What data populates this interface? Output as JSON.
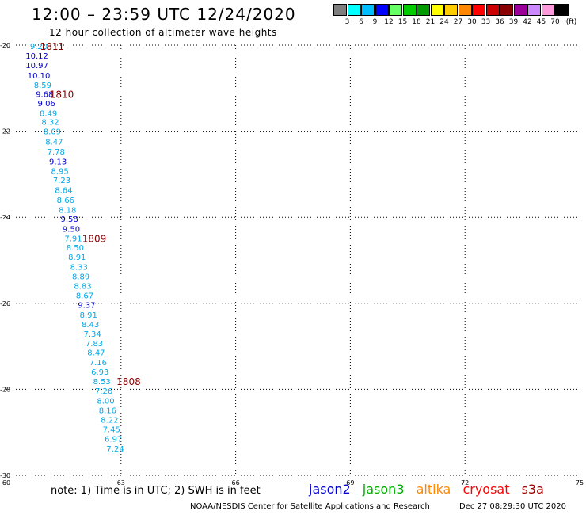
{
  "header": {
    "title": "12:00 – 23:59 UTC 12/24/2020",
    "subtitle": "12 hour collection of altimeter wave heights"
  },
  "color_scale": {
    "unit_label": "(ft)",
    "entries": [
      {
        "label": "3",
        "color": "#7f7f7f"
      },
      {
        "label": "6",
        "color": "#00ffff"
      },
      {
        "label": "9",
        "color": "#00bfff"
      },
      {
        "label": "12",
        "color": "#0000ff"
      },
      {
        "label": "15",
        "color": "#66ff66"
      },
      {
        "label": "18",
        "color": "#00cc00"
      },
      {
        "label": "21",
        "color": "#009900"
      },
      {
        "label": "24",
        "color": "#ffff00"
      },
      {
        "label": "27",
        "color": "#ffcc00"
      },
      {
        "label": "30",
        "color": "#ff8800"
      },
      {
        "label": "33",
        "color": "#ff0000"
      },
      {
        "label": "36",
        "color": "#cc0000"
      },
      {
        "label": "39",
        "color": "#880000"
      },
      {
        "label": "42",
        "color": "#990099"
      },
      {
        "label": "45",
        "color": "#cc88ff"
      },
      {
        "label": "70",
        "color": "#ff99dd"
      },
      {
        "label": "",
        "color": "#000000"
      }
    ]
  },
  "chart_data": {
    "type": "scatter",
    "title": "12:00 – 23:59 UTC 12/24/2020",
    "subtitle": "12 hour collection of altimeter wave heights",
    "xlim": [
      60,
      75
    ],
    "ylim": [
      -30,
      -20
    ],
    "x_ticks": [
      "60",
      "63",
      "66",
      "69",
      "72",
      "75"
    ],
    "y_ticks": [
      "-20",
      "-22",
      "-24",
      "-26",
      "-28",
      "-30"
    ],
    "grid": true,
    "colors": {
      "light": "#00a8e8",
      "dark": "#0000cc",
      "time": "#880000"
    },
    "points": [
      {
        "lon": 60.85,
        "lat": -20.02,
        "label": "9.20",
        "color": "light"
      },
      {
        "lon": 60.8,
        "lat": -20.24,
        "label": "10.12",
        "color": "dark"
      },
      {
        "lon": 60.8,
        "lat": -20.46,
        "label": "10.97",
        "color": "dark"
      },
      {
        "lon": 60.85,
        "lat": -20.7,
        "label": "10.10",
        "color": "dark"
      },
      {
        "lon": 60.95,
        "lat": -20.92,
        "label": "8.59",
        "color": "light"
      },
      {
        "lon": 61.0,
        "lat": -21.13,
        "label": "9.68",
        "color": "dark"
      },
      {
        "lon": 61.05,
        "lat": -21.34,
        "label": "9.06",
        "color": "dark"
      },
      {
        "lon": 61.1,
        "lat": -21.57,
        "label": "8.49",
        "color": "light"
      },
      {
        "lon": 61.15,
        "lat": -21.78,
        "label": "8.32",
        "color": "light"
      },
      {
        "lon": 61.2,
        "lat": -22.0,
        "label": "8.09",
        "color": "light"
      },
      {
        "lon": 61.25,
        "lat": -22.24,
        "label": "8.47",
        "color": "light"
      },
      {
        "lon": 61.3,
        "lat": -22.47,
        "label": "7.78",
        "color": "light"
      },
      {
        "lon": 61.35,
        "lat": -22.7,
        "label": "9.13",
        "color": "dark"
      },
      {
        "lon": 61.4,
        "lat": -22.92,
        "label": "8.95",
        "color": "light"
      },
      {
        "lon": 61.45,
        "lat": -23.13,
        "label": "7.23",
        "color": "light"
      },
      {
        "lon": 61.5,
        "lat": -23.36,
        "label": "8.64",
        "color": "light"
      },
      {
        "lon": 61.55,
        "lat": -23.59,
        "label": "8.66",
        "color": "light"
      },
      {
        "lon": 61.6,
        "lat": -23.82,
        "label": "8.18",
        "color": "light"
      },
      {
        "lon": 61.65,
        "lat": -24.03,
        "label": "9.58",
        "color": "dark"
      },
      {
        "lon": 61.7,
        "lat": -24.26,
        "label": "9.50",
        "color": "dark"
      },
      {
        "lon": 61.75,
        "lat": -24.48,
        "label": "7.91",
        "color": "light"
      },
      {
        "lon": 61.8,
        "lat": -24.7,
        "label": "8.50",
        "color": "light"
      },
      {
        "lon": 61.85,
        "lat": -24.92,
        "label": "8.91",
        "color": "light"
      },
      {
        "lon": 61.9,
        "lat": -25.15,
        "label": "8.33",
        "color": "light"
      },
      {
        "lon": 61.95,
        "lat": -25.37,
        "label": "8.89",
        "color": "light"
      },
      {
        "lon": 62.0,
        "lat": -25.59,
        "label": "8.83",
        "color": "light"
      },
      {
        "lon": 62.05,
        "lat": -25.81,
        "label": "8.67",
        "color": "light"
      },
      {
        "lon": 62.1,
        "lat": -26.03,
        "label": "9.37",
        "color": "dark"
      },
      {
        "lon": 62.15,
        "lat": -26.26,
        "label": "8.91",
        "color": "light"
      },
      {
        "lon": 62.2,
        "lat": -26.48,
        "label": "8.43",
        "color": "light"
      },
      {
        "lon": 62.25,
        "lat": -26.7,
        "label": "7.34",
        "color": "light"
      },
      {
        "lon": 62.3,
        "lat": -26.92,
        "label": "7.83",
        "color": "light"
      },
      {
        "lon": 62.35,
        "lat": -27.14,
        "label": "8.47",
        "color": "light"
      },
      {
        "lon": 62.4,
        "lat": -27.37,
        "label": "7.16",
        "color": "light"
      },
      {
        "lon": 62.45,
        "lat": -27.59,
        "label": "6.93",
        "color": "light"
      },
      {
        "lon": 62.5,
        "lat": -27.81,
        "label": "8.53",
        "color": "light"
      },
      {
        "lon": 62.55,
        "lat": -28.03,
        "label": "7.26",
        "color": "light"
      },
      {
        "lon": 62.6,
        "lat": -28.26,
        "label": "8.00",
        "color": "light"
      },
      {
        "lon": 62.65,
        "lat": -28.48,
        "label": "8.16",
        "color": "light"
      },
      {
        "lon": 62.7,
        "lat": -28.7,
        "label": "8.22",
        "color": "light"
      },
      {
        "lon": 62.75,
        "lat": -28.92,
        "label": "7.45",
        "color": "light"
      },
      {
        "lon": 62.8,
        "lat": -29.14,
        "label": "6.97",
        "color": "light"
      },
      {
        "lon": 62.85,
        "lat": -29.37,
        "label": "7.24",
        "color": "light"
      }
    ],
    "time_labels": [
      {
        "lon": 61.2,
        "lat": -20.02,
        "label": "1811"
      },
      {
        "lon": 61.45,
        "lat": -21.13,
        "label": "1810"
      },
      {
        "lon": 62.3,
        "lat": -24.48,
        "label": "1809"
      },
      {
        "lon": 63.2,
        "lat": -27.81,
        "label": "1808"
      }
    ]
  },
  "footer": {
    "note": "note:  1) Time is in UTC; 2) SWH is in feet",
    "satellites": [
      {
        "name": "jason2",
        "color": "#0000cc"
      },
      {
        "name": "jason3",
        "color": "#00aa00"
      },
      {
        "name": "altika",
        "color": "#ff8800"
      },
      {
        "name": "cryosat",
        "color": "#ff0000"
      },
      {
        "name": "s3a",
        "color": "#990000"
      }
    ],
    "credit": "NOAA/NESDIS Center for Satellite Applications and Research",
    "timestamp": "Dec 27 08:29:30 UTC 2020"
  }
}
